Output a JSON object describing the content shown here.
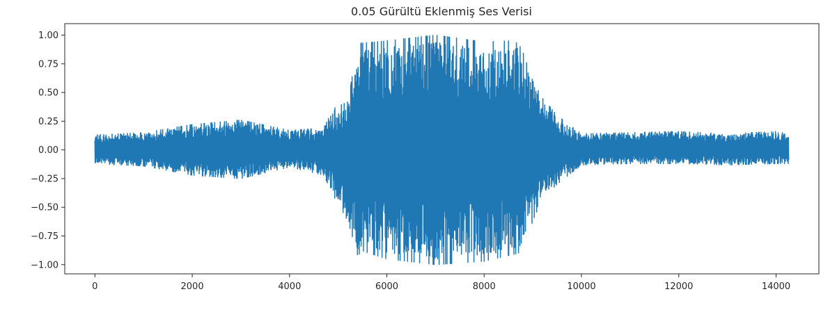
{
  "chart_data": {
    "type": "line",
    "title": "0.05 Gürültü Eklenmiş Ses Verisi",
    "xlabel": "",
    "ylabel": "",
    "xlim": [
      -620,
      14880
    ],
    "ylim": [
      -1.08,
      1.1
    ],
    "x_ticks": [
      0,
      2000,
      4000,
      6000,
      8000,
      10000,
      12000,
      14000
    ],
    "y_ticks": [
      1.0,
      0.75,
      0.5,
      0.25,
      0.0,
      -0.25,
      -0.5,
      -0.75,
      -1.0
    ],
    "x_tick_labels": [
      "0",
      "2000",
      "4000",
      "6000",
      "8000",
      "10000",
      "12000",
      "14000"
    ],
    "y_tick_labels": [
      "1.00",
      "0.75",
      "0.50",
      "0.25",
      "0.00",
      "−0.25",
      "−0.50",
      "−0.75",
      "−1.00"
    ],
    "grid": false,
    "colors": {
      "series": "#1f77b4",
      "axes": "#262626"
    },
    "series": [
      {
        "n_samples": 14260,
        "x_range": [
          0,
          14259
        ],
        "envelope_x": [
          0,
          1000,
          2000,
          3000,
          4000,
          4700,
          4900,
          5200,
          5400,
          5500,
          6000,
          7000,
          8000,
          8500,
          8700,
          8800,
          9000,
          9200,
          9500,
          10000,
          11000,
          12000,
          13000,
          14000,
          14259
        ],
        "envelope_max": [
          0.13,
          0.15,
          0.22,
          0.26,
          0.17,
          0.19,
          0.36,
          0.42,
          0.93,
          0.93,
          0.95,
          1.0,
          0.94,
          0.95,
          0.93,
          0.85,
          0.6,
          0.45,
          0.3,
          0.14,
          0.15,
          0.16,
          0.14,
          0.16,
          0.14
        ],
        "envelope_min": [
          -0.12,
          -0.14,
          -0.22,
          -0.25,
          -0.15,
          -0.22,
          -0.4,
          -0.62,
          -0.92,
          -0.88,
          -0.95,
          -1.0,
          -0.97,
          -0.92,
          -0.9,
          -0.85,
          -0.62,
          -0.42,
          -0.3,
          -0.13,
          -0.12,
          -0.12,
          -0.13,
          -0.12,
          -0.12
        ]
      }
    ]
  }
}
